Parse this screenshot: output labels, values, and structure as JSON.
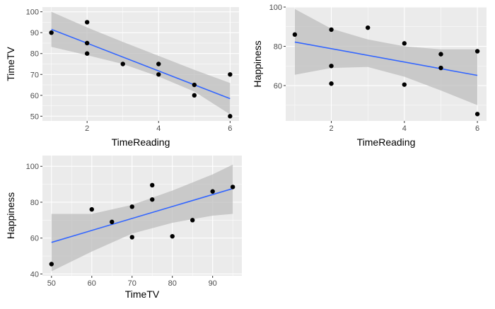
{
  "chart_data": [
    {
      "type": "scatter",
      "xlabel": "TimeReading",
      "ylabel": "TimeTV",
      "xlim": [
        0.75,
        6.25
      ],
      "ylim": [
        47.75,
        102.25
      ],
      "xticks": [
        2,
        4,
        6
      ],
      "yticks": [
        50,
        60,
        70,
        80,
        90,
        100
      ],
      "points": [
        [
          1,
          90
        ],
        [
          2,
          95
        ],
        [
          2,
          85
        ],
        [
          2,
          80
        ],
        [
          3,
          75
        ],
        [
          4,
          75
        ],
        [
          4,
          70
        ],
        [
          5,
          65
        ],
        [
          5,
          60
        ],
        [
          6,
          70
        ],
        [
          6,
          50
        ]
      ],
      "fit": {
        "method": "lm",
        "x": [
          1,
          6
        ],
        "y": [
          91.6,
          58.4
        ]
      },
      "band": {
        "x": [
          1,
          2,
          3,
          4,
          5,
          6
        ],
        "upper": [
          100.0,
          92.5,
          85.6,
          78.9,
          72.2,
          65.9
        ],
        "lower": [
          83.2,
          79.2,
          75.0,
          69.0,
          61.8,
          50.9
        ]
      },
      "colors": {
        "panel": "#ebebeb",
        "grid": "#ffffff",
        "point": "#000000",
        "line": "#3366ff",
        "band": "#bdbdbd"
      }
    },
    {
      "type": "scatter",
      "xlabel": "TimeReading",
      "ylabel": "Happiness",
      "xlim": [
        0.75,
        6.25
      ],
      "ylim": [
        42,
        100
      ],
      "xticks": [
        2,
        4,
        6
      ],
      "yticks": [
        60,
        80,
        100
      ],
      "points": [
        [
          1,
          86
        ],
        [
          2,
          88.5
        ],
        [
          2,
          70
        ],
        [
          2,
          61
        ],
        [
          3,
          89.5
        ],
        [
          4,
          81.5
        ],
        [
          4,
          60.5
        ],
        [
          5,
          76
        ],
        [
          5,
          69
        ],
        [
          6,
          77.5
        ],
        [
          6,
          45.5
        ]
      ],
      "fit": {
        "method": "lm",
        "x": [
          1,
          6
        ],
        "y": [
          82.2,
          65.2
        ]
      },
      "band": {
        "x": [
          1,
          2,
          3,
          4,
          5,
          6
        ],
        "upper": [
          99.0,
          89.0,
          83.5,
          80.0,
          78.5,
          78.5
        ],
        "lower": [
          65.5,
          69.0,
          69.5,
          64.5,
          57.5,
          50.0
        ]
      },
      "colors": {
        "panel": "#ebebeb",
        "grid": "#ffffff",
        "point": "#000000",
        "line": "#3366ff",
        "band": "#bdbdbd"
      }
    },
    {
      "type": "scatter",
      "xlabel": "TimeTV",
      "ylabel": "Happiness",
      "xlim": [
        47.75,
        97.25
      ],
      "ylim": [
        39,
        106
      ],
      "xticks": [
        50,
        60,
        70,
        80,
        90
      ],
      "yticks": [
        40,
        60,
        80,
        100
      ],
      "points": [
        [
          50,
          45.5
        ],
        [
          60,
          76
        ],
        [
          65,
          69
        ],
        [
          70,
          77.5
        ],
        [
          70,
          60.5
        ],
        [
          75,
          89.5
        ],
        [
          75,
          81.5
        ],
        [
          80,
          61
        ],
        [
          85,
          70
        ],
        [
          90,
          86
        ],
        [
          95,
          88.5
        ]
      ],
      "fit": {
        "method": "lm",
        "x": [
          50,
          95
        ],
        "y": [
          57.6,
          87.6
        ]
      },
      "band": {
        "x": [
          50,
          60,
          70,
          80,
          90,
          95
        ],
        "upper": [
          73.5,
          73.5,
          78.5,
          86.5,
          95.5,
          101.0
        ],
        "lower": [
          41.5,
          52.5,
          62.5,
          68.5,
          72.5,
          73.5
        ]
      },
      "colors": {
        "panel": "#ebebeb",
        "grid": "#ffffff",
        "point": "#000000",
        "line": "#3366ff",
        "band": "#bdbdbd"
      }
    }
  ]
}
